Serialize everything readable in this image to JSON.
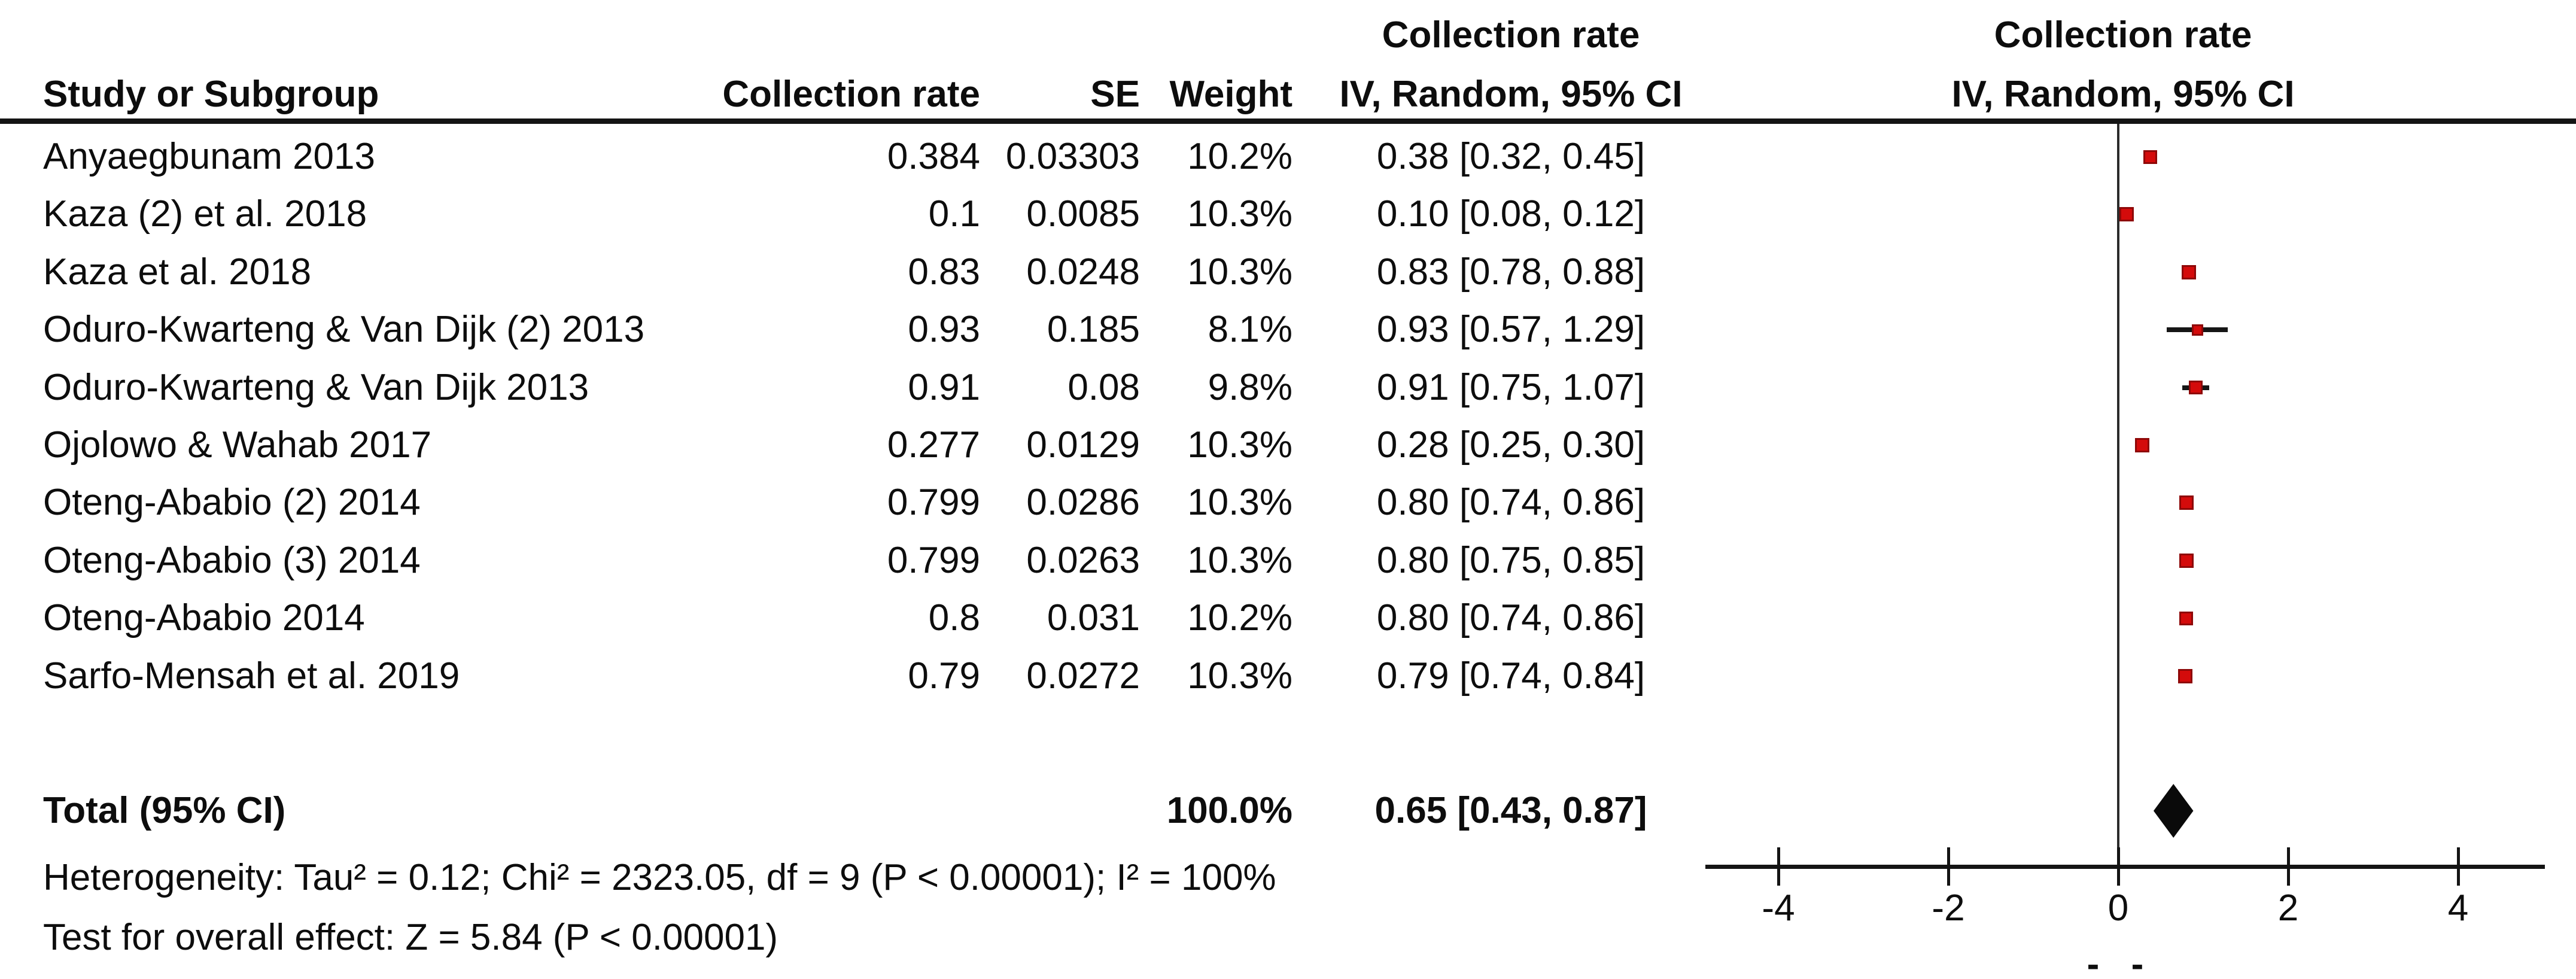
{
  "table": {
    "headers": {
      "study": "Study or Subgroup",
      "rate": "Collection rate",
      "se": "SE",
      "weight": "Weight",
      "effect_top": "Collection rate",
      "effect_bottom": "IV, Random, 95% CI",
      "plot_top": "Collection rate",
      "plot_bottom": "IV, Random, 95% CI"
    },
    "rows": [
      {
        "study": "Anyaegbunam 2013",
        "rate": "0.384",
        "se": "0.03303",
        "weight": "10.2%",
        "ci": "0.38 [0.32, 0.45]"
      },
      {
        "study": "Kaza (2) et al. 2018",
        "rate": "0.1",
        "se": "0.0085",
        "weight": "10.3%",
        "ci": "0.10 [0.08, 0.12]"
      },
      {
        "study": "Kaza et al. 2018",
        "rate": "0.83",
        "se": "0.0248",
        "weight": "10.3%",
        "ci": "0.83 [0.78, 0.88]"
      },
      {
        "study": "Oduro-Kwarteng & Van Dijk (2) 2013",
        "rate": "0.93",
        "se": "0.185",
        "weight": "8.1%",
        "ci": "0.93 [0.57, 1.29]"
      },
      {
        "study": "Oduro-Kwarteng & Van Dijk 2013",
        "rate": "0.91",
        "se": "0.08",
        "weight": "9.8%",
        "ci": "0.91 [0.75, 1.07]"
      },
      {
        "study": "Ojolowo & Wahab 2017",
        "rate": "0.277",
        "se": "0.0129",
        "weight": "10.3%",
        "ci": "0.28 [0.25, 0.30]"
      },
      {
        "study": "Oteng-Ababio (2) 2014",
        "rate": "0.799",
        "se": "0.0286",
        "weight": "10.3%",
        "ci": "0.80 [0.74, 0.86]"
      },
      {
        "study": "Oteng-Ababio (3) 2014",
        "rate": "0.799",
        "se": "0.0263",
        "weight": "10.3%",
        "ci": "0.80 [0.75, 0.85]"
      },
      {
        "study": "Oteng-Ababio 2014",
        "rate": "0.8",
        "se": "0.031",
        "weight": "10.2%",
        "ci": "0.80 [0.74, 0.86]"
      },
      {
        "study": "Sarfo-Mensah et al. 2019",
        "rate": "0.79",
        "se": "0.0272",
        "weight": "10.3%",
        "ci": "0.79 [0.74, 0.84]"
      }
    ],
    "total": {
      "label": "Total (95% CI)",
      "weight": "100.0%",
      "ci": "0.65 [0.43, 0.87]"
    },
    "heterogeneity": "Heterogeneity: Tau² = 0.12; Chi² = 2323.05, df = 9 (P < 0.00001); I² = 100%",
    "overall_effect": "Test for overall effect: Z = 5.84 (P < 0.00001)"
  },
  "chart_data": {
    "type": "scatter",
    "variant": "forest",
    "title": "Collection rate IV, Random, 95% CI",
    "x_ticks": [
      -4,
      -2,
      0,
      2,
      4
    ],
    "xlim": [
      -4.85,
      5.0
    ],
    "zero_line_x": 0,
    "marker_color": "#D40B0B",
    "marker_border_color": "#8E0808",
    "line_color": "#161616",
    "studies": [
      {
        "name": "Anyaegbunam 2013",
        "estimate": 0.38,
        "ci_low": 0.32,
        "ci_high": 0.45,
        "weight_pct": 10.2
      },
      {
        "name": "Kaza (2) et al. 2018",
        "estimate": 0.1,
        "ci_low": 0.08,
        "ci_high": 0.12,
        "weight_pct": 10.3
      },
      {
        "name": "Kaza et al. 2018",
        "estimate": 0.83,
        "ci_low": 0.78,
        "ci_high": 0.88,
        "weight_pct": 10.3
      },
      {
        "name": "Oduro-Kwarteng & Van Dijk (2) 2013",
        "estimate": 0.93,
        "ci_low": 0.57,
        "ci_high": 1.29,
        "weight_pct": 8.1
      },
      {
        "name": "Oduro-Kwarteng & Van Dijk 2013",
        "estimate": 0.91,
        "ci_low": 0.75,
        "ci_high": 1.07,
        "weight_pct": 9.8
      },
      {
        "name": "Ojolowo & Wahab 2017",
        "estimate": 0.28,
        "ci_low": 0.25,
        "ci_high": 0.3,
        "weight_pct": 10.3
      },
      {
        "name": "Oteng-Ababio (2) 2014",
        "estimate": 0.8,
        "ci_low": 0.74,
        "ci_high": 0.86,
        "weight_pct": 10.3
      },
      {
        "name": "Oteng-Ababio (3) 2014",
        "estimate": 0.8,
        "ci_low": 0.75,
        "ci_high": 0.85,
        "weight_pct": 10.3
      },
      {
        "name": "Oteng-Ababio 2014",
        "estimate": 0.8,
        "ci_low": 0.74,
        "ci_high": 0.86,
        "weight_pct": 10.2
      },
      {
        "name": "Sarfo-Mensah et al. 2019",
        "estimate": 0.79,
        "ci_low": 0.74,
        "ci_high": 0.84,
        "weight_pct": 10.3
      }
    ],
    "total": {
      "name": "Total (95% CI)",
      "estimate": 0.65,
      "ci_low": 0.43,
      "ci_high": 0.87
    },
    "bottom_marks": [
      "-",
      "-"
    ]
  }
}
